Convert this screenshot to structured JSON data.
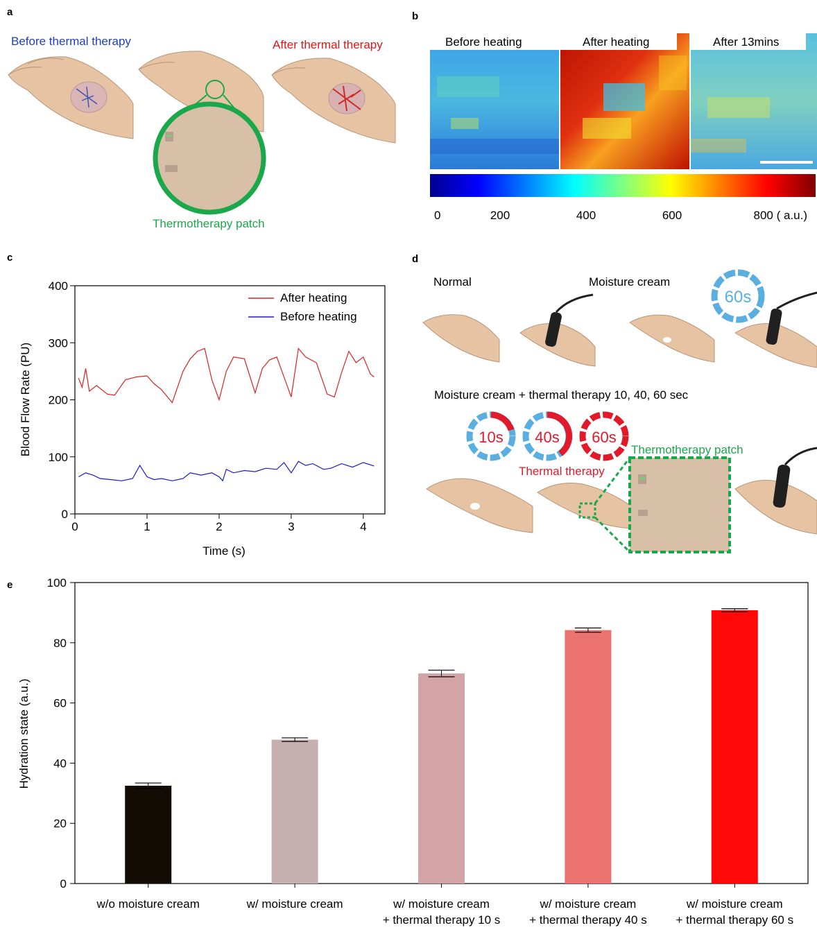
{
  "panels": {
    "a": "a",
    "b": "b",
    "c": "c",
    "d": "d",
    "e": "e"
  },
  "panel_a": {
    "before_label": "Before thermal therapy",
    "after_label": "After thermal therapy",
    "patch_label": "Thermotherapy patch",
    "colors": {
      "before": "#1f3fbf",
      "after": "#e01515",
      "patch": "#1aa84a"
    }
  },
  "panel_b": {
    "labels": [
      "Before heating",
      "After heating",
      "After 13mins"
    ],
    "colorbar_ticks": [
      "0",
      "200",
      "400",
      "600",
      "800 ( a.u.)"
    ]
  },
  "panel_d": {
    "normal_label": "Normal",
    "cream_label": "Moisture cream",
    "combo_label": "Moisture cream + thermal therapy 10, 40, 60 sec",
    "thermal_label": "Thermal therapy",
    "patch_label": "Thermotherapy patch",
    "timers": [
      "10s",
      "40s",
      "60s"
    ],
    "timer_top": "60s"
  },
  "chart_data": [
    {
      "type": "line",
      "xlabel": "Time (s)",
      "ylabel": "Blood Flow Rate  (PU)",
      "xlim": [
        0,
        4.3
      ],
      "ylim": [
        0,
        400
      ],
      "xticks": [
        "0",
        "1",
        "2",
        "3",
        "4"
      ],
      "yticks": [
        "0",
        "100",
        "200",
        "300",
        "400"
      ],
      "legend_position": "top-right",
      "series": [
        {
          "name": "After heating",
          "color": "#e02020",
          "x": [
            0.05,
            0.1,
            0.15,
            0.2,
            0.3,
            0.45,
            0.55,
            0.7,
            0.85,
            1.0,
            1.1,
            1.2,
            1.35,
            1.5,
            1.6,
            1.7,
            1.8,
            1.9,
            2.0,
            2.1,
            2.2,
            2.35,
            2.5,
            2.6,
            2.7,
            2.8,
            2.9,
            3.0,
            3.1,
            3.2,
            3.35,
            3.5,
            3.6,
            3.7,
            3.8,
            3.9,
            4.0,
            4.1,
            4.15
          ],
          "y": [
            238,
            222,
            255,
            215,
            225,
            210,
            208,
            235,
            240,
            242,
            228,
            218,
            195,
            250,
            272,
            285,
            290,
            235,
            200,
            250,
            275,
            272,
            212,
            255,
            270,
            275,
            240,
            205,
            290,
            275,
            265,
            210,
            205,
            248,
            285,
            265,
            275,
            245,
            240
          ]
        },
        {
          "name": "Before heating",
          "color": "#1a1ad0",
          "x": [
            0.05,
            0.15,
            0.25,
            0.35,
            0.5,
            0.65,
            0.8,
            0.9,
            1.0,
            1.1,
            1.2,
            1.35,
            1.5,
            1.6,
            1.75,
            1.9,
            2.0,
            2.05,
            2.1,
            2.2,
            2.35,
            2.5,
            2.65,
            2.8,
            2.9,
            3.0,
            3.1,
            3.2,
            3.3,
            3.45,
            3.55,
            3.7,
            3.85,
            4.0,
            4.15
          ],
          "y": [
            65,
            72,
            68,
            62,
            60,
            58,
            62,
            85,
            65,
            60,
            62,
            58,
            62,
            72,
            68,
            72,
            65,
            58,
            78,
            72,
            76,
            74,
            80,
            78,
            90,
            72,
            92,
            85,
            88,
            78,
            80,
            88,
            82,
            90,
            84
          ]
        }
      ]
    },
    {
      "type": "bar",
      "xlabel": "",
      "ylabel": "Hydration state  (a.u.)",
      "ylim": [
        0,
        100
      ],
      "yticks": [
        "0",
        "20",
        "40",
        "60",
        "80",
        "100"
      ],
      "categories": [
        [
          "w/o moisture cream"
        ],
        [
          "w/ moisture cream"
        ],
        [
          "w/ moisture cream",
          "+ thermal therapy 10 s"
        ],
        [
          "w/ moisture cream",
          "+ thermal therapy 40 s"
        ],
        [
          "w/ moisture cream",
          "+ thermal therapy 60 s"
        ]
      ],
      "values": [
        32.5,
        47.8,
        69.8,
        84.2,
        90.8
      ],
      "errors": [
        0.9,
        0.6,
        1.1,
        0.7,
        0.5
      ],
      "colors": [
        "#120c05",
        "#c8afaf",
        "#d4a3a5",
        "#ec7270",
        "#ff0808"
      ]
    }
  ]
}
